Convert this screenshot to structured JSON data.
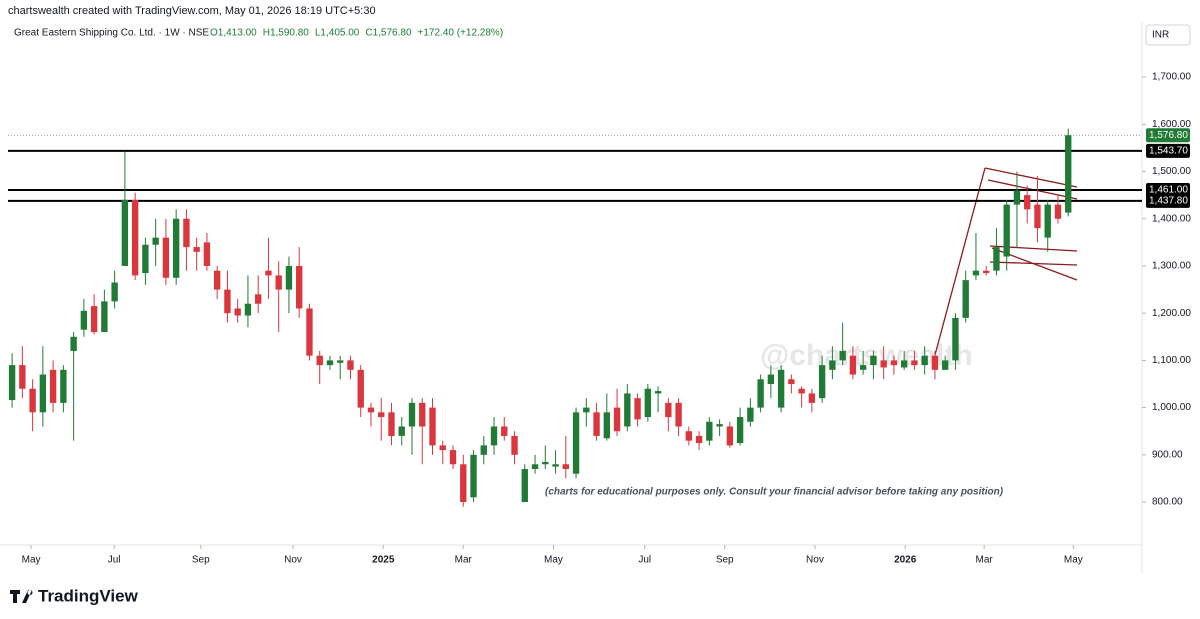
{
  "chart_data": {
    "type": "candlestick",
    "credit": "chartswealth created with TradingView.com, May 01, 2026 18:19 UTC+5:30",
    "title": "Great Eastern Shipping Co. Ltd. · 1W · NSE",
    "legend_values": [
      "O1,413.00",
      "H1,590.80",
      "L1,405.00",
      "C1,576.80",
      "+172.40 (+12.28%)"
    ],
    "currency": "INR",
    "watermark": "@chartswealth",
    "annotation": "(charts for educational purposes only. Consult your financial advisor before taking any position)",
    "brand": "TradingView",
    "up_color": "#227a37",
    "down_color": "#d9363e",
    "open": [
      1016,
      1090,
      1040,
      990,
      1080,
      1010,
      1120,
      1165,
      1215,
      1160,
      1225,
      1300,
      1440,
      1285,
      1345,
      1360,
      1275,
      1400,
      1340,
      1350,
      1290,
      1250,
      1210,
      1195,
      1240,
      1290,
      1280,
      1250,
      1300,
      1210,
      1110,
      1090,
      1095,
      1100,
      1080,
      1000,
      990,
      990,
      940,
      960,
      1010,
      1000,
      920,
      910,
      880,
      810,
      900,
      920,
      960,
      940,
      800,
      870,
      880,
      875,
      880,
      860,
      990,
      990,
      935,
      1000,
      960,
      1020,
      980,
      1030,
      1010,
      1010,
      950,
      940,
      930,
      960,
      960,
      925,
      970,
      1000,
      1050,
      1000,
      1060,
      1040,
      1030,
      1020,
      1080,
      1100,
      1110,
      1080,
      1090,
      1100,
      1100,
      1085,
      1100,
      1090,
      1110,
      1080,
      1100,
      1190,
      1280,
      1290,
      1290,
      1320,
      1430,
      1450,
      1430,
      1360,
      1430,
      1413
    ],
    "high": [
      1115,
      1130,
      1060,
      1130,
      1100,
      1090,
      1160,
      1230,
      1240,
      1250,
      1290,
      1543,
      1455,
      1360,
      1400,
      1400,
      1420,
      1420,
      1360,
      1370,
      1300,
      1290,
      1230,
      1280,
      1280,
      1360,
      1310,
      1320,
      1340,
      1220,
      1120,
      1110,
      1110,
      1110,
      1090,
      1010,
      1020,
      1010,
      980,
      1020,
      1020,
      1020,
      930,
      920,
      900,
      910,
      940,
      980,
      980,
      950,
      880,
      900,
      920,
      910,
      940,
      1000,
      1020,
      1010,
      1030,
      1040,
      1050,
      1030,
      1050,
      1045,
      1020,
      1020,
      960,
      950,
      980,
      975,
      970,
      1000,
      1020,
      1070,
      1090,
      1090,
      1070,
      1045,
      1040,
      1110,
      1130,
      1180,
      1130,
      1120,
      1120,
      1130,
      1110,
      1120,
      1120,
      1130,
      1120,
      1110,
      1200,
      1290,
      1370,
      1300,
      1380,
      1440,
      1500,
      1470,
      1490,
      1440,
      1450,
      1590.8
    ],
    "low": [
      1000,
      1020,
      950,
      960,
      990,
      990,
      930,
      1150,
      1155,
      1160,
      1210,
      1300,
      1270,
      1260,
      1300,
      1260,
      1260,
      1290,
      1290,
      1290,
      1230,
      1180,
      1180,
      1170,
      1200,
      1230,
      1160,
      1200,
      1190,
      1100,
      1050,
      1080,
      1060,
      1060,
      980,
      960,
      930,
      920,
      920,
      900,
      880,
      900,
      880,
      870,
      790,
      800,
      880,
      900,
      930,
      880,
      800,
      860,
      870,
      860,
      850,
      850,
      960,
      930,
      930,
      940,
      950,
      960,
      970,
      990,
      950,
      940,
      920,
      910,
      920,
      940,
      915,
      920,
      960,
      990,
      1020,
      990,
      1030,
      1000,
      990,
      1010,
      1060,
      1090,
      1060,
      1070,
      1060,
      1060,
      1070,
      1080,
      1080,
      1070,
      1060,
      1080,
      1080,
      1180,
      1270,
      1280,
      1280,
      1290,
      1340,
      1390,
      1350,
      1330,
      1390,
      1405
    ],
    "close": [
      1090,
      1040,
      990,
      1070,
      1010,
      1080,
      1150,
      1205,
      1160,
      1225,
      1265,
      1440,
      1280,
      1345,
      1360,
      1275,
      1400,
      1340,
      1330,
      1300,
      1250,
      1200,
      1195,
      1220,
      1220,
      1280,
      1250,
      1300,
      1210,
      1110,
      1090,
      1100,
      1100,
      1080,
      1000,
      990,
      980,
      940,
      960,
      1010,
      960,
      920,
      910,
      880,
      800,
      900,
      920,
      960,
      940,
      900,
      870,
      880,
      885,
      880,
      870,
      990,
      1000,
      940,
      990,
      950,
      1030,
      975,
      1040,
      1035,
      980,
      960,
      930,
      925,
      970,
      965,
      920,
      980,
      1000,
      1060,
      1070,
      1080,
      1050,
      1030,
      1010,
      1090,
      1100,
      1120,
      1070,
      1090,
      1110,
      1085,
      1090,
      1100,
      1090,
      1110,
      1080,
      1100,
      1190,
      1270,
      1290,
      1285,
      1340,
      1430,
      1460,
      1420,
      1380,
      1430,
      1400,
      1576.8
    ],
    "xlim": [
      -0.4,
      110
    ],
    "xticks": [
      {
        "value": 1.85,
        "label": "May"
      },
      {
        "value": 9.95,
        "label": "Jul"
      },
      {
        "value": 18.4,
        "label": "Sep"
      },
      {
        "value": 27.4,
        "label": "Nov"
      },
      {
        "value": 36.2,
        "label": "2025"
      },
      {
        "value": 44,
        "label": "Mar"
      },
      {
        "value": 52.8,
        "label": "May"
      },
      {
        "value": 61.7,
        "label": "Jul"
      },
      {
        "value": 69.5,
        "label": "Sep"
      },
      {
        "value": 78.3,
        "label": "Nov"
      },
      {
        "value": 87.1,
        "label": "2026"
      },
      {
        "value": 94.8,
        "label": "Mar"
      },
      {
        "value": 103.5,
        "label": "May"
      }
    ],
    "ylim": [
      709,
      1768
    ],
    "yticks": [
      {
        "value": 800,
        "label": "800.00"
      },
      {
        "value": 900,
        "label": "900.00"
      },
      {
        "value": 1000,
        "label": "1,000.00"
      },
      {
        "value": 1100,
        "label": "1,100.00"
      },
      {
        "value": 1200,
        "label": "1,200.00"
      },
      {
        "value": 1300,
        "label": "1,300.00"
      },
      {
        "value": 1400,
        "label": "1,400.00"
      },
      {
        "value": 1500,
        "label": "1,500.00"
      },
      {
        "value": 1600,
        "label": "1,600.00"
      },
      {
        "value": 1700,
        "label": "1,700.00"
      }
    ],
    "levels": [
      {
        "value": 1543.7,
        "label": "1,543.70"
      },
      {
        "value": 1461,
        "label": "1,461.00"
      },
      {
        "value": 1437.8,
        "label": "1,437.80"
      }
    ],
    "last_price": {
      "value": 1576.8,
      "label": "1,576.80"
    }
  }
}
